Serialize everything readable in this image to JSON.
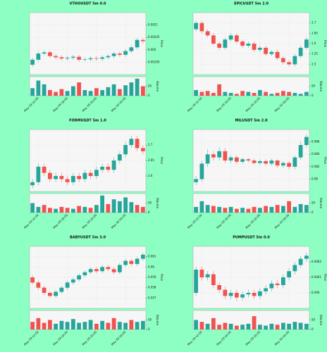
{
  "chart_data": [
    {
      "type": "candlestick",
      "title": "VTHOUSDT 5m 0.0",
      "ylabel": "Price",
      "vlabel": "Volume",
      "grid": true,
      "up_color": "#26a69a",
      "down_color": "#ef5350",
      "open": [
        0.00194,
        0.00196,
        0.001985,
        0.00199,
        0.001975,
        0.00197,
        0.001965,
        0.001968,
        0.001972,
        0.00196,
        0.001962,
        0.001966,
        0.001964,
        0.00197,
        0.001975,
        0.001985,
        0.00198,
        0.001995,
        0.00201,
        0.00204
      ],
      "high": [
        0.001968,
        0.001993,
        0.001998,
        0.001998,
        0.001983,
        0.001978,
        0.001976,
        0.00198,
        0.00198,
        0.00197,
        0.001974,
        0.001974,
        0.001978,
        0.001983,
        0.001993,
        0.001993,
        0.002003,
        0.002018,
        0.002048,
        0.002048
      ],
      "low": [
        0.001932,
        0.001952,
        0.001977,
        0.001967,
        0.001962,
        0.001957,
        0.001957,
        0.00196,
        0.001952,
        0.001952,
        0.001954,
        0.001956,
        0.001956,
        0.001962,
        0.001967,
        0.001972,
        0.001972,
        0.001987,
        0.002002,
        0.002027
      ],
      "close": [
        0.00196,
        0.001985,
        0.00199,
        0.001975,
        0.00197,
        0.001965,
        0.001968,
        0.001972,
        0.00196,
        0.001962,
        0.001966,
        0.001964,
        0.00197,
        0.001975,
        0.001985,
        0.00198,
        0.001995,
        0.00201,
        0.00204,
        0.002035
      ],
      "volume": [
        40,
        80,
        60,
        30,
        20,
        35,
        25,
        50,
        70,
        30,
        25,
        40,
        30,
        45,
        60,
        35,
        55,
        70,
        90,
        50
      ],
      "ylim": [
        0.0019,
        0.00215
      ],
      "yticks": [
        0.00195,
        0.002,
        0.00205,
        0.0021
      ],
      "vlim": [
        0,
        100
      ],
      "vticks": [
        0,
        50
      ],
      "xticks": [
        {
          "value": 1,
          "label": "May 29 12:00"
        },
        {
          "value": 6,
          "label": "May 29 16:00"
        },
        {
          "value": 11,
          "label": "May 29 20:00"
        },
        {
          "value": 16,
          "label": "May 30 00:00"
        }
      ]
    },
    {
      "type": "candlestick",
      "title": "EPICUSDT 5m 2.0",
      "ylabel": "Price",
      "vlabel": "Volume",
      "grid": true,
      "up_color": "#26a69a",
      "down_color": "#ef5350",
      "open": [
        1.67,
        1.7,
        1.66,
        1.64,
        1.6,
        1.58,
        1.62,
        1.64,
        1.61,
        1.59,
        1.6,
        1.57,
        1.58,
        1.55,
        1.56,
        1.53,
        1.51,
        1.5,
        1.54,
        1.58
      ],
      "high": [
        1.71,
        1.71,
        1.67,
        1.65,
        1.61,
        1.63,
        1.65,
        1.65,
        1.62,
        1.61,
        1.61,
        1.59,
        1.59,
        1.57,
        1.57,
        1.54,
        1.52,
        1.55,
        1.59,
        1.63
      ],
      "low": [
        1.66,
        1.65,
        1.63,
        1.59,
        1.57,
        1.57,
        1.61,
        1.6,
        1.58,
        1.58,
        1.56,
        1.56,
        1.54,
        1.54,
        1.52,
        1.5,
        1.49,
        1.49,
        1.53,
        1.57
      ],
      "close": [
        1.7,
        1.66,
        1.64,
        1.6,
        1.58,
        1.62,
        1.64,
        1.61,
        1.59,
        1.6,
        1.57,
        1.58,
        1.55,
        1.56,
        1.53,
        1.51,
        1.5,
        1.54,
        1.58,
        1.62
      ],
      "volume": [
        30,
        20,
        25,
        15,
        60,
        20,
        15,
        10,
        25,
        20,
        15,
        30,
        20,
        10,
        15,
        25,
        20,
        15,
        10,
        20
      ],
      "ylim": [
        1.45,
        1.75
      ],
      "yticks": [
        1.5,
        1.55,
        1.6,
        1.65,
        1.7
      ],
      "vlim": [
        0,
        100
      ],
      "vticks": [
        0,
        50
      ],
      "xticks": [
        {
          "value": 1,
          "label": "May 29 12:00"
        },
        {
          "value": 6,
          "label": "May 29 16:00"
        },
        {
          "value": 11,
          "label": "May 29 20:00"
        },
        {
          "value": 16,
          "label": "May 30 00:00"
        }
      ]
    },
    {
      "type": "candlestick",
      "title": "FORMUSDT 5m 1.0",
      "ylabel": "Price",
      "vlabel": "Volume",
      "grid": true,
      "up_color": "#26a69a",
      "down_color": "#ef5350",
      "open": [
        2.57,
        2.58,
        2.63,
        2.61,
        2.59,
        2.6,
        2.59,
        2.58,
        2.6,
        2.59,
        2.61,
        2.6,
        2.62,
        2.63,
        2.62,
        2.65,
        2.67,
        2.7,
        2.72,
        2.69
      ],
      "high": [
        2.59,
        2.64,
        2.64,
        2.62,
        2.61,
        2.61,
        2.6,
        2.61,
        2.61,
        2.62,
        2.62,
        2.63,
        2.64,
        2.64,
        2.66,
        2.68,
        2.71,
        2.73,
        2.73,
        2.7
      ],
      "low": [
        2.56,
        2.57,
        2.6,
        2.58,
        2.58,
        2.58,
        2.57,
        2.57,
        2.58,
        2.58,
        2.59,
        2.59,
        2.61,
        2.61,
        2.61,
        2.64,
        2.66,
        2.69,
        2.68,
        2.67
      ],
      "close": [
        2.58,
        2.63,
        2.61,
        2.59,
        2.6,
        2.59,
        2.58,
        2.6,
        2.59,
        2.61,
        2.6,
        2.62,
        2.63,
        2.62,
        2.65,
        2.67,
        2.7,
        2.72,
        2.69,
        2.68
      ],
      "volume": [
        50,
        30,
        40,
        25,
        20,
        30,
        25,
        20,
        35,
        30,
        25,
        40,
        90,
        45,
        70,
        60,
        80,
        55,
        40,
        30
      ],
      "ylim": [
        2.55,
        2.75
      ],
      "yticks": [
        2.6,
        2.65,
        2.7
      ],
      "vlim": [
        0,
        100
      ],
      "vticks": [
        0,
        50
      ],
      "xticks": [
        {
          "value": 1,
          "label": "May 29 12:00"
        },
        {
          "value": 6,
          "label": "May 29 16:00"
        },
        {
          "value": 11,
          "label": "May 29 20:00"
        },
        {
          "value": 16,
          "label": "May 30 00:00"
        }
      ]
    },
    {
      "type": "candlestick",
      "title": "MILUSDT 5m 2.0",
      "ylabel": "Price",
      "vlabel": "Volume",
      "grid": true,
      "up_color": "#26a69a",
      "down_color": "#ef5350",
      "open": [
        0.0795,
        0.08,
        0.0825,
        0.084,
        0.0835,
        0.0845,
        0.083,
        0.0835,
        0.0828,
        0.0832,
        0.083,
        0.0826,
        0.0829,
        0.0825,
        0.083,
        0.0822,
        0.0826,
        0.082,
        0.0835,
        0.0855
      ],
      "high": [
        0.0805,
        0.083,
        0.0848,
        0.0845,
        0.0852,
        0.085,
        0.0838,
        0.0838,
        0.0835,
        0.0834,
        0.0833,
        0.0832,
        0.0832,
        0.0833,
        0.0832,
        0.0829,
        0.0829,
        0.0838,
        0.086,
        0.0872
      ],
      "low": [
        0.079,
        0.0796,
        0.082,
        0.083,
        0.083,
        0.0826,
        0.0826,
        0.0824,
        0.0825,
        0.0827,
        0.0823,
        0.0823,
        0.0822,
        0.0822,
        0.0818,
        0.0818,
        0.0816,
        0.0816,
        0.0831,
        0.0851
      ],
      "close": [
        0.08,
        0.0825,
        0.084,
        0.0835,
        0.0845,
        0.083,
        0.0835,
        0.0828,
        0.0832,
        0.083,
        0.0826,
        0.0829,
        0.0825,
        0.083,
        0.0822,
        0.0826,
        0.082,
        0.0835,
        0.0855,
        0.0868
      ],
      "volume": [
        30,
        60,
        40,
        35,
        30,
        25,
        30,
        20,
        25,
        20,
        30,
        25,
        35,
        30,
        40,
        35,
        60,
        30,
        45,
        40
      ],
      "ylim": [
        0.078,
        0.088
      ],
      "yticks": [
        0.08,
        0.082,
        0.084,
        0.086
      ],
      "vlim": [
        0,
        100
      ],
      "vticks": [
        0,
        50
      ],
      "xticks": [
        {
          "value": 1,
          "label": "May 29 12:00"
        },
        {
          "value": 6,
          "label": "May 29 16:00"
        },
        {
          "value": 11,
          "label": "May 29 20:00"
        },
        {
          "value": 16,
          "label": "May 30 00:00"
        }
      ]
    },
    {
      "type": "candlestick",
      "title": "BABYUSDT 5m 3.0",
      "ylabel": "Price",
      "vlabel": "Volume",
      "grid": true,
      "up_color": "#26a69a",
      "down_color": "#ef5350",
      "open": [
        0.059,
        0.0585,
        0.058,
        0.0575,
        0.0572,
        0.0576,
        0.058,
        0.0585,
        0.0588,
        0.0592,
        0.0595,
        0.0598,
        0.0596,
        0.06,
        0.0598,
        0.0595,
        0.0602,
        0.0606,
        0.0603,
        0.0608
      ],
      "high": [
        0.0592,
        0.0587,
        0.0582,
        0.0577,
        0.0578,
        0.0582,
        0.0587,
        0.059,
        0.0594,
        0.0597,
        0.06,
        0.06,
        0.0602,
        0.0602,
        0.06,
        0.0604,
        0.0608,
        0.0608,
        0.061,
        0.0614
      ],
      "low": [
        0.0583,
        0.0578,
        0.0573,
        0.057,
        0.057,
        0.0574,
        0.0578,
        0.0583,
        0.0586,
        0.059,
        0.0593,
        0.0594,
        0.0594,
        0.0596,
        0.0593,
        0.0593,
        0.06,
        0.0601,
        0.0601,
        0.0606
      ],
      "close": [
        0.0585,
        0.058,
        0.0575,
        0.0572,
        0.0576,
        0.058,
        0.0585,
        0.0588,
        0.0592,
        0.0595,
        0.0598,
        0.0596,
        0.06,
        0.0598,
        0.0595,
        0.0602,
        0.0606,
        0.0603,
        0.0608,
        0.0612
      ],
      "volume": [
        40,
        60,
        35,
        50,
        30,
        45,
        40,
        55,
        35,
        40,
        50,
        30,
        45,
        35,
        60,
        40,
        35,
        50,
        40,
        45
      ],
      "ylim": [
        0.056,
        0.062
      ],
      "yticks": [
        0.057,
        0.058,
        0.059,
        0.06,
        0.061
      ],
      "vlim": [
        0,
        100
      ],
      "vticks": [
        0,
        50
      ],
      "xticks": [
        {
          "value": 1,
          "label": "May 29 12:00"
        },
        {
          "value": 6,
          "label": "May 29 16:00"
        },
        {
          "value": 11,
          "label": "May 29 20:00"
        },
        {
          "value": 16,
          "label": "May 30 00:00"
        }
      ]
    },
    {
      "type": "candlestick",
      "title": "PUMPUSDT 5m 0.0",
      "ylabel": "Price",
      "vlabel": "Volume",
      "grid": true,
      "up_color": "#26a69a",
      "down_color": "#ef5350",
      "open": [
        0.006,
        0.00615,
        0.0061,
        0.00612,
        0.00605,
        0.00602,
        0.00598,
        0.006,
        0.00597,
        0.00599,
        0.006,
        0.00598,
        0.00601,
        0.00603,
        0.00606,
        0.00605,
        0.0061,
        0.00614,
        0.00618,
        0.00622
      ],
      "high": [
        0.00617,
        0.00617,
        0.00614,
        0.00614,
        0.00607,
        0.00604,
        0.00602,
        0.00602,
        0.00601,
        0.00602,
        0.00602,
        0.00603,
        0.00605,
        0.00608,
        0.00608,
        0.00612,
        0.00616,
        0.0062,
        0.00624,
        0.00626
      ],
      "low": [
        0.00598,
        0.00608,
        0.00608,
        0.00603,
        0.006,
        0.00596,
        0.00596,
        0.00595,
        0.00595,
        0.00597,
        0.00596,
        0.00596,
        0.00599,
        0.00601,
        0.00603,
        0.00603,
        0.00608,
        0.00612,
        0.00616,
        0.0062
      ],
      "close": [
        0.00615,
        0.0061,
        0.00612,
        0.00605,
        0.00602,
        0.00598,
        0.006,
        0.00597,
        0.00599,
        0.006,
        0.00598,
        0.00601,
        0.00603,
        0.00606,
        0.00605,
        0.0061,
        0.00614,
        0.00618,
        0.00622,
        0.00624
      ],
      "volume": [
        50,
        40,
        30,
        60,
        25,
        35,
        30,
        20,
        25,
        30,
        70,
        25,
        20,
        30,
        25,
        35,
        30,
        40,
        35,
        30
      ],
      "ylim": [
        0.0059,
        0.0063
      ],
      "yticks": [
        0.006,
        0.0061,
        0.0062
      ],
      "vlim": [
        0,
        100
      ],
      "vticks": [
        0,
        50
      ],
      "xticks": [
        {
          "value": 1,
          "label": "May 29 12:00"
        },
        {
          "value": 6,
          "label": "May 29 16:00"
        },
        {
          "value": 11,
          "label": "May 29 20:00"
        },
        {
          "value": 16,
          "label": "May 30 00:00"
        }
      ]
    }
  ]
}
